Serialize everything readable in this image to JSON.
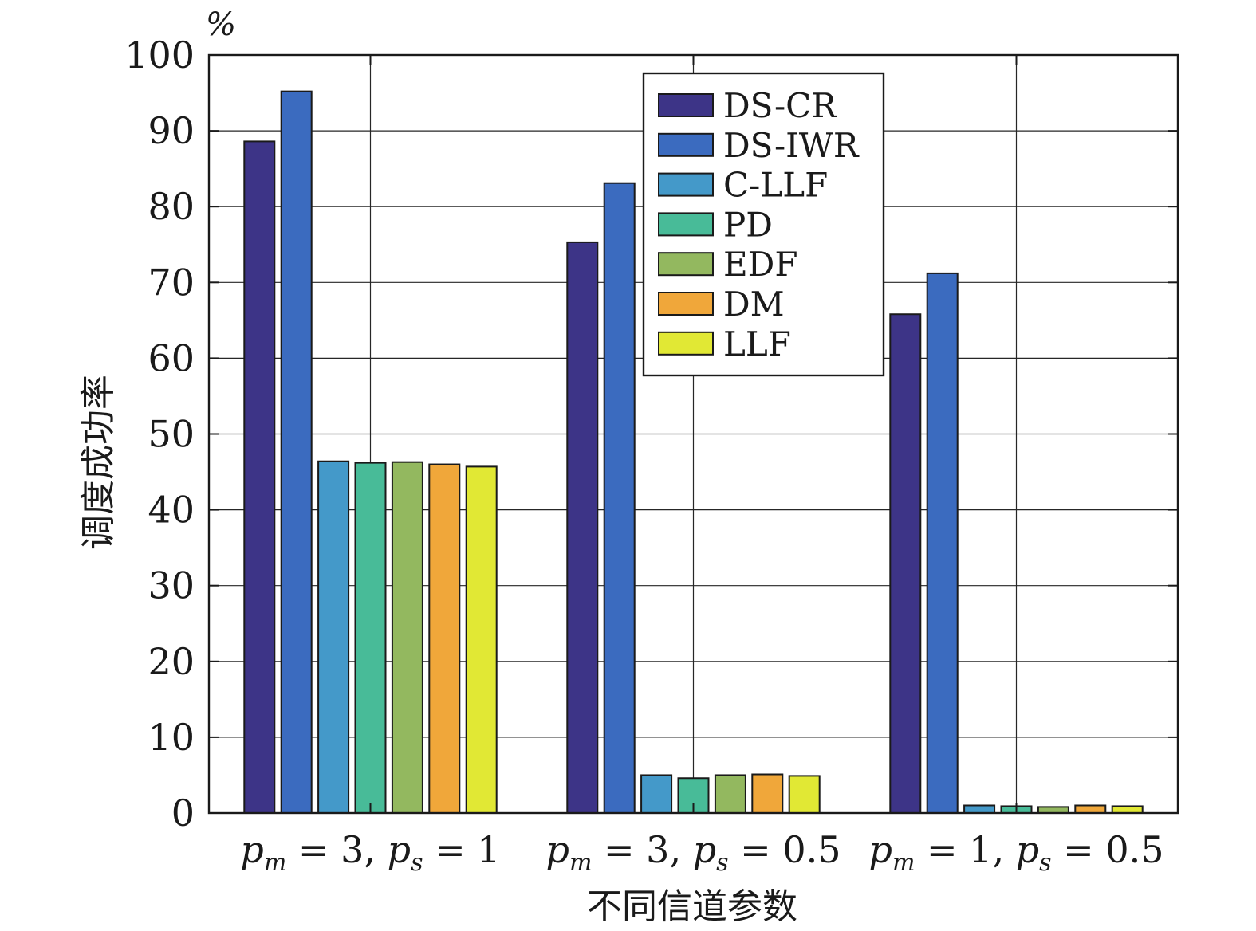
{
  "chart_data": {
    "type": "bar",
    "categories": [
      "p_m = 3, p_s = 1",
      "p_m = 3, p_s = 0.5",
      "p_m = 1, p_s = 0.5"
    ],
    "category_labels": [
      {
        "a": "p",
        "a_sub": "m",
        "a_val": " = 3, ",
        "b": "p",
        "b_sub": "s",
        "b_val": " = 1"
      },
      {
        "a": "p",
        "a_sub": "m",
        "a_val": " = 3, ",
        "b": "p",
        "b_sub": "s",
        "b_val": " = 0.5"
      },
      {
        "a": "p",
        "a_sub": "m",
        "a_val": " = 1, ",
        "b": "p",
        "b_sub": "s",
        "b_val": " = 0.5"
      }
    ],
    "series": [
      {
        "name": "DS-CR",
        "color": "#3d3487",
        "values": [
          88.6,
          75.3,
          65.8
        ]
      },
      {
        "name": "DS-IWR",
        "color": "#3b6bbf",
        "values": [
          95.2,
          83.1,
          71.2
        ]
      },
      {
        "name": "C-LLF",
        "color": "#4499c9",
        "values": [
          46.4,
          5.0,
          1.0
        ]
      },
      {
        "name": "PD",
        "color": "#48bb98",
        "values": [
          46.2,
          4.6,
          0.9
        ]
      },
      {
        "name": "EDF",
        "color": "#93b85f",
        "values": [
          46.3,
          5.0,
          0.8
        ]
      },
      {
        "name": "DM",
        "color": "#f0a73a",
        "values": [
          46.0,
          5.1,
          1.0
        ]
      },
      {
        "name": "LLF",
        "color": "#e1e834",
        "values": [
          45.7,
          4.9,
          0.9
        ]
      }
    ],
    "xlabel": "不同信道参数",
    "ylabel": "调度成功率",
    "yunit": "%",
    "ylim": [
      0,
      100
    ],
    "yticks": [
      0,
      10,
      20,
      30,
      40,
      50,
      60,
      70,
      80,
      90,
      100
    ],
    "grid": true,
    "legend_position": "top-center"
  }
}
